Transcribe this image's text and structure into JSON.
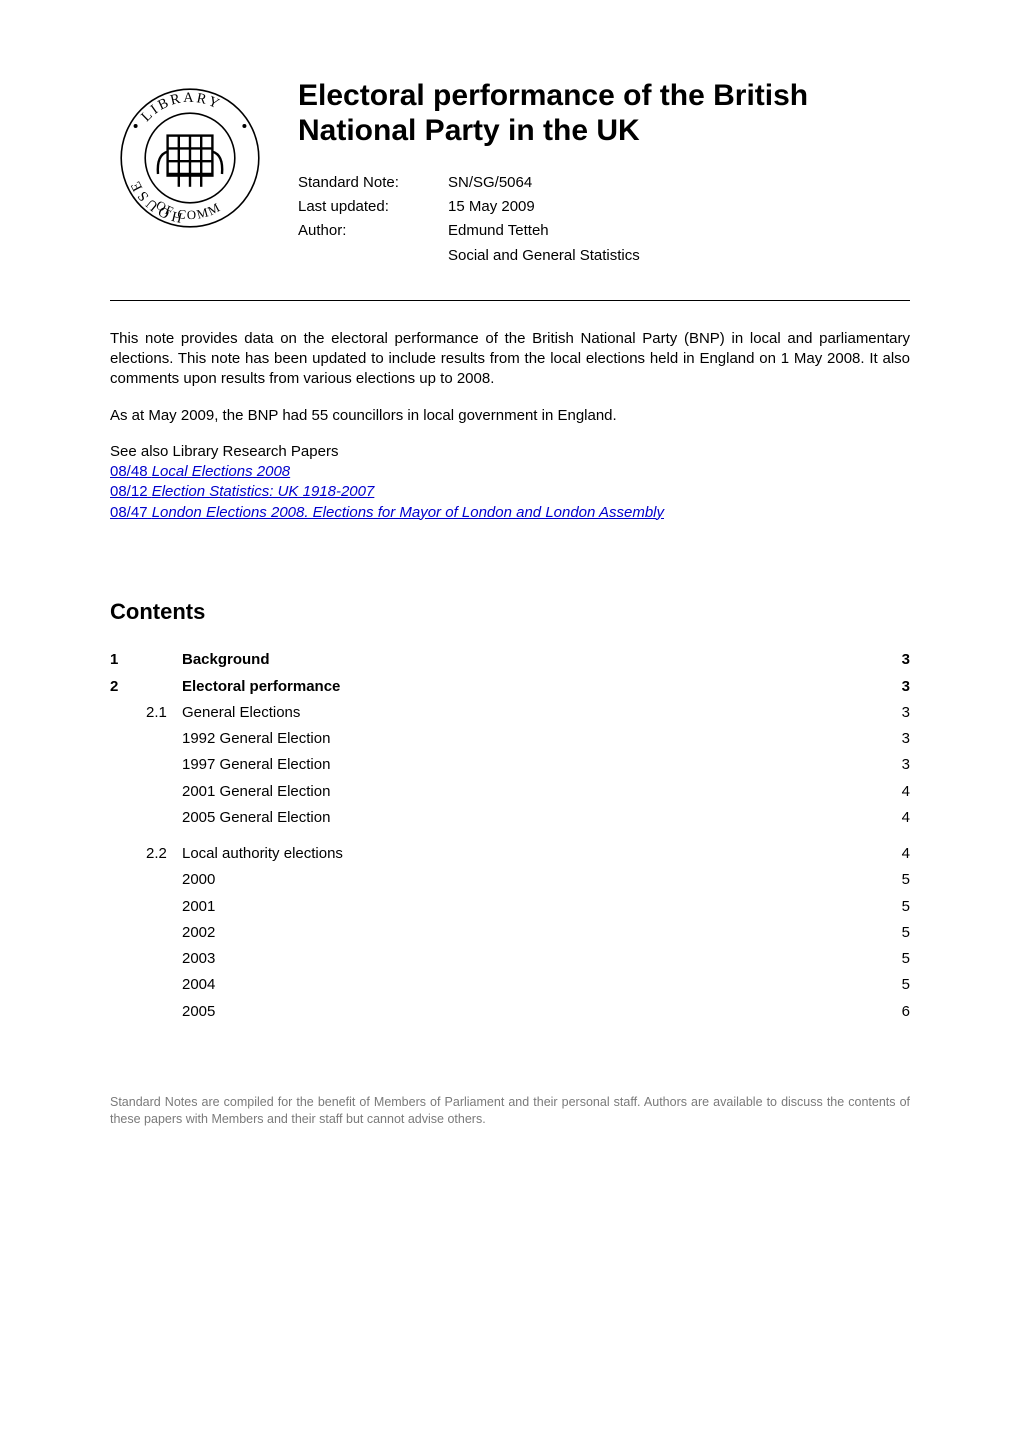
{
  "crest": {
    "outer_text_top": "LIBRARY",
    "outer_text_left": "HOUSE",
    "outer_text_bottom_left": "OF",
    "outer_text_bottom_right": "COMMONS",
    "circle_stroke": "#000000",
    "text_color": "#000000"
  },
  "title": "Electoral performance of the British National Party in the UK",
  "meta": {
    "standard_note_label": "Standard Note:",
    "standard_note_value": "SN/SG/5064",
    "last_updated_label": "Last updated:",
    "last_updated_value": "15 May 2009",
    "author_label": "Author:",
    "author_value": "Edmund Tetteh",
    "section_value": "Social and General Statistics"
  },
  "body": {
    "para1": "This note provides data on the electoral performance of the British National Party (BNP) in local and parliamentary elections. This note has been updated to include results from the local elections held in England on 1 May 2008. It also comments upon results from various elections up to 2008.",
    "para2": "As at May 2009, the BNP had 55 councillors in local government in England.",
    "see_also": "See also Library Research Papers",
    "refs": [
      {
        "code": "08/48",
        "title": "Local Elections 2008"
      },
      {
        "code": "08/12",
        "title": "Election Statistics: UK 1918-2007"
      },
      {
        "code": "08/47",
        "title": "London Elections 2008. Elections for Mayor of London and London Assembly"
      }
    ]
  },
  "contents_heading": "Contents",
  "toc": [
    {
      "level": 1,
      "num": "1",
      "sub": "",
      "label": "Background",
      "page": "3"
    },
    {
      "level": 1,
      "num": "2",
      "sub": "",
      "label": "Electoral performance",
      "page": "3"
    },
    {
      "level": 2,
      "num": "",
      "sub": "2.1",
      "label": "General Elections",
      "page": "3"
    },
    {
      "level": 3,
      "num": "",
      "sub": "",
      "label": "1992 General Election",
      "page": "3"
    },
    {
      "level": 3,
      "num": "",
      "sub": "",
      "label": "1997 General Election",
      "page": "3"
    },
    {
      "level": 3,
      "num": "",
      "sub": "",
      "label": "2001 General Election",
      "page": "4"
    },
    {
      "level": 3,
      "num": "",
      "sub": "",
      "label": "2005 General Election",
      "page": "4"
    },
    {
      "level": 2,
      "num": "",
      "sub": "2.2",
      "label": "Local authority elections",
      "page": "4",
      "gap_before": true
    },
    {
      "level": 3,
      "num": "",
      "sub": "",
      "label": "2000",
      "page": "5"
    },
    {
      "level": 3,
      "num": "",
      "sub": "",
      "label": "2001",
      "page": "5"
    },
    {
      "level": 3,
      "num": "",
      "sub": "",
      "label": "2002",
      "page": "5"
    },
    {
      "level": 3,
      "num": "",
      "sub": "",
      "label": "2003",
      "page": "5"
    },
    {
      "level": 3,
      "num": "",
      "sub": "",
      "label": "2004",
      "page": "5"
    },
    {
      "level": 3,
      "num": "",
      "sub": "",
      "label": "2005",
      "page": "6"
    }
  ],
  "footer": "Standard Notes are compiled for the benefit of Members of Parliament and their personal staff.  Authors are available to discuss the contents of these papers with Members and their staff but cannot advise others."
}
